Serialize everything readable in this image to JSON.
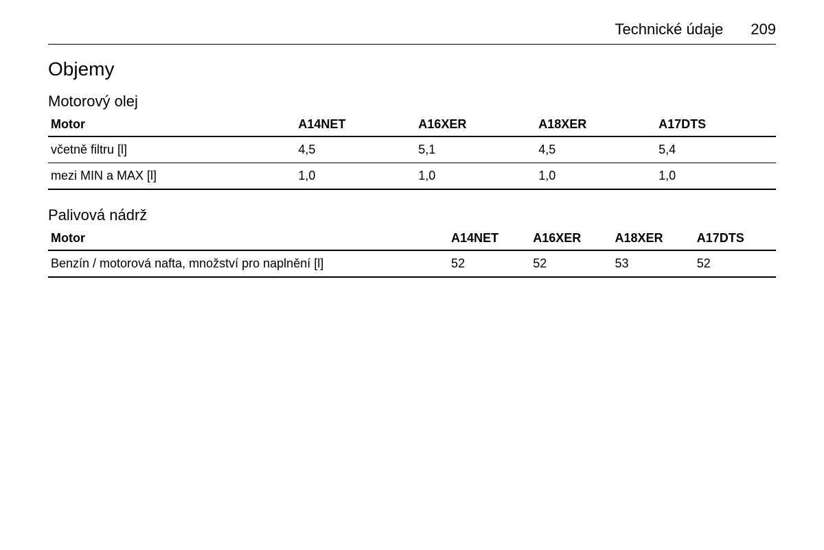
{
  "header": {
    "chapter_title": "Technické údaje",
    "page_number": "209"
  },
  "section": {
    "title": "Objemy"
  },
  "table1": {
    "title": "Motorový olej",
    "columns": [
      "Motor",
      "A14NET",
      "A16XER",
      "A18XER",
      "A17DTS"
    ],
    "rows": [
      [
        "včetně filtru [l]",
        "4,5",
        "5,1",
        "4,5",
        "5,4"
      ],
      [
        "mezi MIN a MAX [l]",
        "1,0",
        "1,0",
        "1,0",
        "1,0"
      ]
    ]
  },
  "table2": {
    "title": "Palivová nádrž",
    "columns": [
      "Motor",
      "A14NET",
      "A16XER",
      "A18XER",
      "A17DTS"
    ],
    "rows": [
      [
        "Benzín / motorová nafta, množství pro naplnění [l]",
        "52",
        "52",
        "53",
        "52"
      ]
    ]
  }
}
